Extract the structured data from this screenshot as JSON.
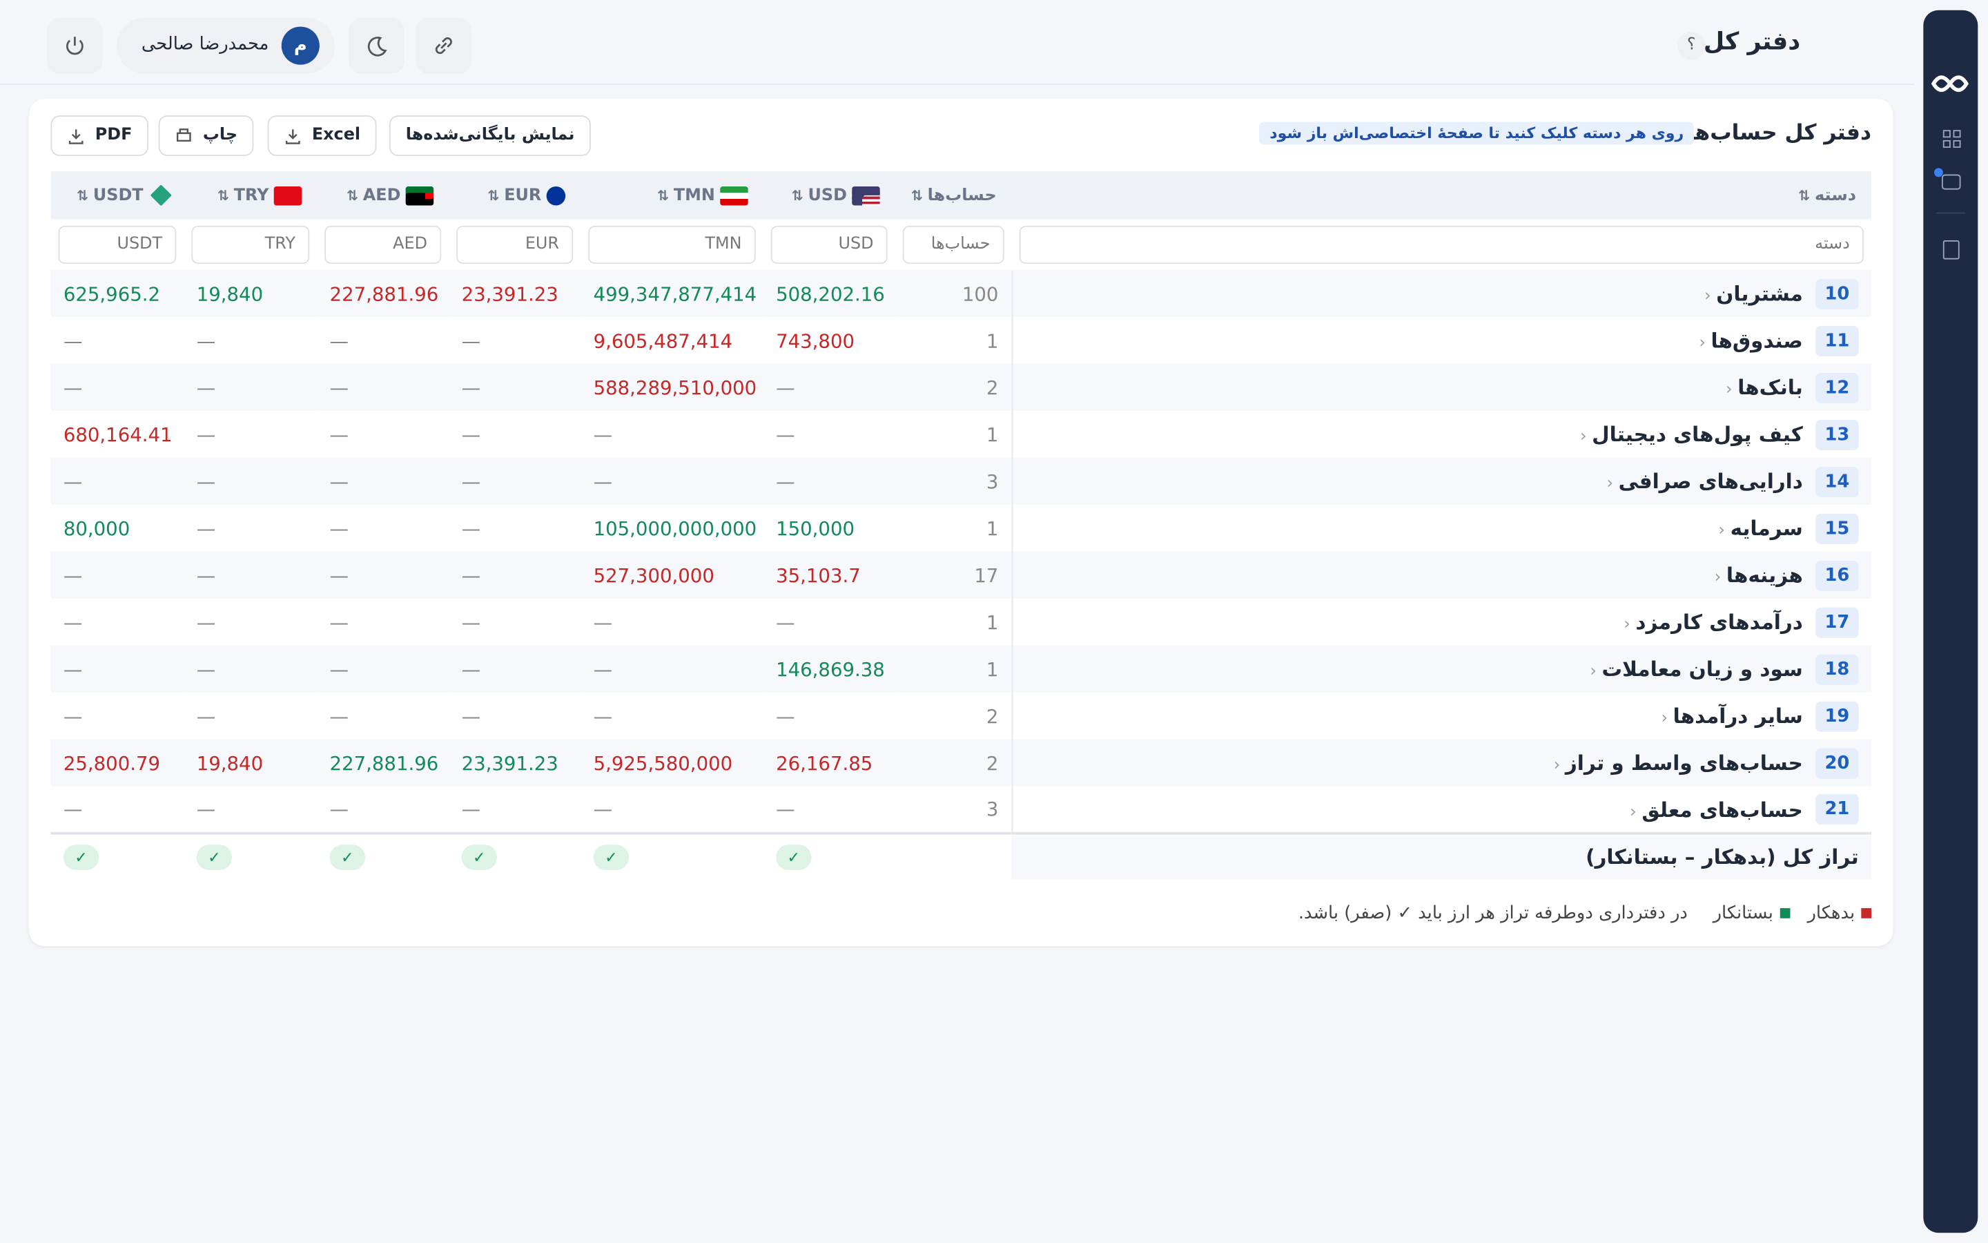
{
  "header": {
    "title": "دفتر کل",
    "help": "؟",
    "user_name": "محمدرضا صالحی",
    "user_initial": "م"
  },
  "card": {
    "title": "دفتر کل حساب‌ها",
    "hint": "روی هر دسته کلیک کنید تا صفحهٔ اختصاصی‌اش باز شود",
    "buttons": [
      "نمایش بایگانی‌شده‌ها",
      "Excel",
      "چاپ",
      "PDF"
    ]
  },
  "table": {
    "columns": [
      "دسته",
      "حساب‌ها",
      "USD",
      "TMN",
      "EUR",
      "AED",
      "TRY",
      "USDT"
    ],
    "filters": [
      "دسته",
      "حساب‌ها",
      "USD",
      "TMN",
      "EUR",
      "AED",
      "TRY",
      "USDT"
    ],
    "rows": [
      {
        "code": "10",
        "name": "مشتریان",
        "accounts": "100",
        "values": [
          {
            "text": "508,202.16",
            "color": "#138a5a"
          },
          {
            "text": "499,347,877,414",
            "color": "#138a5a"
          },
          {
            "text": "23,391.23",
            "color": "#c62828"
          },
          {
            "text": "227,881.96",
            "color": "#c62828"
          },
          {
            "text": "19,840",
            "color": "#138a5a"
          },
          {
            "text": "625,965.2",
            "color": "#138a5a"
          }
        ]
      },
      {
        "code": "11",
        "name": "صندوق‌ها",
        "accounts": "1",
        "values": [
          {
            "text": "743,800",
            "color": "#c62828"
          },
          {
            "text": "9,605,487,414",
            "color": "#c62828"
          },
          "—",
          "—",
          "—",
          "—"
        ]
      },
      {
        "code": "12",
        "name": "بانک‌ها",
        "accounts": "2",
        "values": [
          "—",
          {
            "text": "588,289,510,000",
            "color": "#c62828"
          },
          "—",
          "—",
          "—",
          "—"
        ]
      },
      {
        "code": "13",
        "name": "کیف پول‌های دیجیتال",
        "accounts": "1",
        "values": [
          "—",
          "—",
          "—",
          "—",
          "—",
          {
            "text": "680,164.41",
            "color": "#c62828"
          }
        ]
      },
      {
        "code": "14",
        "name": "دارایی‌های صرافی",
        "accounts": "3",
        "values": [
          "—",
          "—",
          "—",
          "—",
          "—",
          "—"
        ]
      },
      {
        "code": "15",
        "name": "سرمایه",
        "accounts": "1",
        "values": [
          {
            "text": "150,000",
            "color": "#138a5a"
          },
          {
            "text": "105,000,000,000",
            "color": "#138a5a"
          },
          "—",
          "—",
          "—",
          {
            "text": "80,000",
            "color": "#138a5a"
          }
        ]
      },
      {
        "code": "16",
        "name": "هزینه‌ها",
        "accounts": "17",
        "values": [
          {
            "text": "35,103.7",
            "color": "#c62828"
          },
          {
            "text": "527,300,000",
            "color": "#c62828"
          },
          "—",
          "—",
          "—",
          "—"
        ]
      },
      {
        "code": "17",
        "name": "درآمدهای کارمزد",
        "accounts": "1",
        "values": [
          "—",
          "—",
          "—",
          "—",
          "—",
          "—"
        ]
      },
      {
        "code": "18",
        "name": "سود و زیان معاملات",
        "accounts": "1",
        "values": [
          {
            "text": "146,869.38",
            "color": "#138a5a"
          },
          "—",
          "—",
          "—",
          "—",
          "—"
        ]
      },
      {
        "code": "19",
        "name": "سایر درآمدها",
        "accounts": "2",
        "values": [
          "—",
          "—",
          "—",
          "—",
          "—",
          "—"
        ]
      },
      {
        "code": "20",
        "name": "حساب‌های واسط و تراز",
        "accounts": "2",
        "values": [
          {
            "text": "26,167.85",
            "color": "#c62828"
          },
          {
            "text": "5,925,580,000",
            "color": "#c62828"
          },
          {
            "text": "23,391.23",
            "color": "#138a5a"
          },
          {
            "text": "227,881.96",
            "color": "#138a5a"
          },
          {
            "text": "19,840",
            "color": "#c62828"
          },
          {
            "text": "25,800.79",
            "color": "#c62828"
          }
        ]
      },
      {
        "code": "21",
        "name": "حساب‌های معلق",
        "accounts": "3",
        "values": [
          "—",
          "—",
          "—",
          "—",
          "—",
          "—"
        ]
      }
    ],
    "total": {
      "label": "تراز کل (بدهکار – بستانکار)",
      "checks": [
        "✓",
        "✓",
        "✓",
        "✓",
        "✓",
        "✓"
      ]
    }
  },
  "legend": {
    "debit": "بدهکار",
    "debit_color": "#c62828",
    "credit": "بستانکار",
    "credit_color": "#138a5a",
    "note": "در دفترداری دوطرفه تراز هر ارز باید ✓ (صفر) باشد."
  }
}
